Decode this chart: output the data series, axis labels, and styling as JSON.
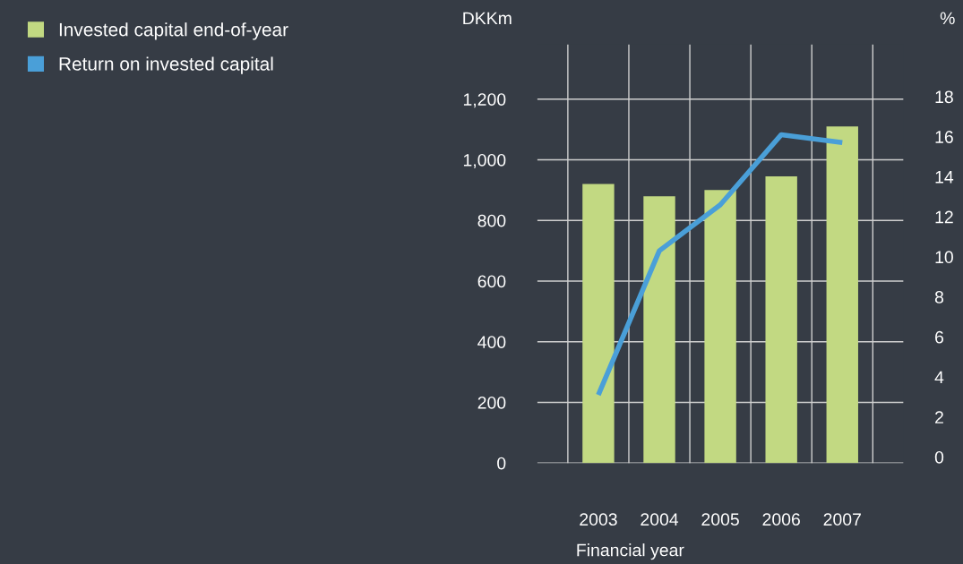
{
  "chart_data": {
    "type": "bar",
    "categories": [
      "2003",
      "2004",
      "2005",
      "2006",
      "2007"
    ],
    "series": [
      {
        "name": "Invested capital end-of-year",
        "color": "#c2d982",
        "values": [
          920,
          880,
          900,
          945,
          1110
        ]
      },
      {
        "name": "Return on invested capital",
        "type": "line",
        "axis": "y2",
        "color": "#4a9fd8",
        "values": [
          3.1,
          10.3,
          12.6,
          16.1,
          15.7
        ]
      }
    ],
    "xlabel": "Financial year",
    "ylabel": "DKKm",
    "y2label": "%",
    "ylim": [
      0,
      1380
    ],
    "yticks": [
      0,
      200,
      400,
      600,
      800,
      {
        "value": 1000,
        "label": "1,000"
      },
      {
        "value": 1200,
        "label": "1,200"
      }
    ],
    "y2lim": [
      -0.3,
      20.6
    ],
    "y2ticks": [
      0,
      2,
      4,
      6,
      8,
      10,
      12,
      14,
      16,
      18
    ],
    "grid": true,
    "legend": "top left",
    "marker": "none",
    "line_style": "solid"
  }
}
